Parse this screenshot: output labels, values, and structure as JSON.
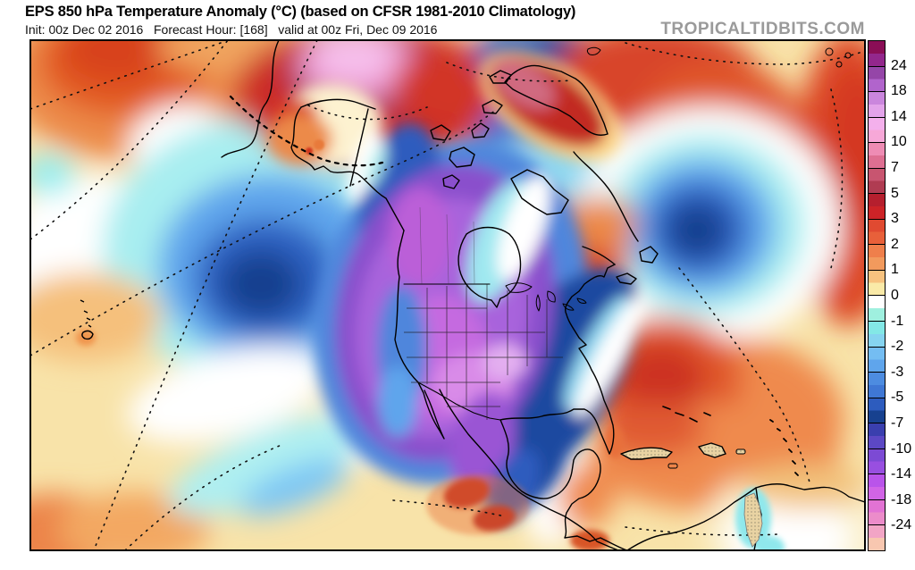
{
  "header": {
    "title": "EPS 850 hPa Temperature Anomaly (°C) (based on CFSR 1981-2010 Climatology)",
    "subtitle": "Init: 00z Dec 02 2016   Forecast Hour: [168]   valid at 00z Fri, Dec 09 2016",
    "watermark": "TROPICALTIDBITS.COM"
  },
  "colorbar": {
    "unit": "°C",
    "tick_labels": [
      "24",
      "18",
      "14",
      "10",
      "7",
      "5",
      "3",
      "2",
      "1",
      "0",
      "-1",
      "-2",
      "-3",
      "-5",
      "-7",
      "-10",
      "-14",
      "-18",
      "-24"
    ],
    "segments": [
      {
        "range": "> 24",
        "colors": [
          "#8a0e56",
          "#93278c"
        ]
      },
      {
        "range": "18 to 24",
        "colors": [
          "#9546a8",
          "#b164cc"
        ]
      },
      {
        "range": "14 to 18",
        "colors": [
          "#ca86dd",
          "#e3a3ea"
        ]
      },
      {
        "range": "10 to 14",
        "colors": [
          "#f4b0ec",
          "#f7a8d8"
        ]
      },
      {
        "range": "7 to 10",
        "colors": [
          "#ee8cb4",
          "#de6f92"
        ]
      },
      {
        "range": "5 to 7",
        "colors": [
          "#c85570",
          "#b03c52"
        ]
      },
      {
        "range": "3 to 5",
        "colors": [
          "#b51f2e",
          "#cc2327"
        ]
      },
      {
        "range": "2 to 3",
        "colors": [
          "#e04a31",
          "#e8603a"
        ]
      },
      {
        "range": "1 to 2",
        "colors": [
          "#ef7f4b",
          "#f29a5d"
        ]
      },
      {
        "range": "0 to 1",
        "colors": [
          "#f7c27f",
          "#faeaa8"
        ]
      },
      {
        "range": "-1 to 0",
        "colors": [
          "#ffffff",
          "#9ff0df"
        ]
      },
      {
        "range": "-2 to -1",
        "colors": [
          "#83e8e6",
          "#86d4f0"
        ]
      },
      {
        "range": "-3 to -2",
        "colors": [
          "#74bdf2",
          "#5fa5ec"
        ]
      },
      {
        "range": "-5 to -3",
        "colors": [
          "#4d8ce0",
          "#3f77d4"
        ]
      },
      {
        "range": "-7 to -5",
        "colors": [
          "#2d5cbe",
          "#17418f"
        ]
      },
      {
        "range": "-10 to -7",
        "colors": [
          "#3a3fae",
          "#5c48c4"
        ]
      },
      {
        "range": "-14 to -10",
        "colors": [
          "#7c4ad4",
          "#984fe0"
        ]
      },
      {
        "range": "-18 to -14",
        "colors": [
          "#b954ea",
          "#d164e6"
        ]
      },
      {
        "range": "-24 to -18",
        "colors": [
          "#e273d4",
          "#ec8cca"
        ]
      },
      {
        "range": "< -24",
        "colors": [
          "#f2a5c6",
          "#f8c7b0"
        ]
      }
    ]
  }
}
